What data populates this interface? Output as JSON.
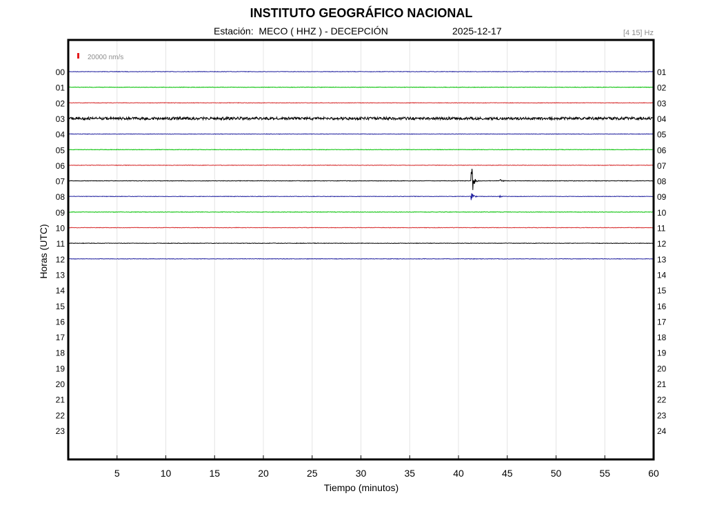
{
  "header": {
    "title": "INSTITUTO GEOGRÁFICO NACIONAL",
    "station": "Estación:  MECO ( HHZ ) - DECEPCIÓN",
    "date": "2025-12-17",
    "filter": "[4 15] Hz"
  },
  "chart_data": {
    "type": "line",
    "xlabel": "Tiempo (minutos)",
    "ylabel": "Horas (UTC)",
    "xlim": [
      0,
      60
    ],
    "x_ticks": [
      5,
      10,
      15,
      20,
      25,
      30,
      35,
      40,
      45,
      50,
      55,
      60
    ],
    "left_hour_labels": [
      "00",
      "01",
      "02",
      "03",
      "04",
      "05",
      "06",
      "07",
      "08",
      "09",
      "10",
      "11",
      "12",
      "13",
      "14",
      "15",
      "16",
      "17",
      "18",
      "19",
      "20",
      "21",
      "22",
      "23"
    ],
    "right_hour_labels": [
      "01",
      "02",
      "03",
      "04",
      "05",
      "06",
      "07",
      "08",
      "09",
      "10",
      "11",
      "12",
      "13",
      "14",
      "15",
      "16",
      "17",
      "18",
      "19",
      "20",
      "21",
      "22",
      "23",
      "24"
    ],
    "scale_label": "20000 nm/s",
    "scale_color": "#e41a1c",
    "grid": "vertical",
    "trace_color_cycle": [
      "#1f1f9e",
      "#00c000",
      "#d62728",
      "#000000"
    ],
    "series": [
      {
        "hour": 0,
        "color": "#1f1f9e",
        "events": [
          {
            "minute": 10.3,
            "amplitude": 0.3
          },
          {
            "minute": 29.2,
            "amplitude": 0.3
          }
        ]
      },
      {
        "hour": 1,
        "color": "#00c000",
        "events": [
          {
            "minute": 15.4,
            "amplitude": 0.2
          }
        ]
      },
      {
        "hour": 2,
        "color": "#d62728",
        "events": [
          {
            "minute": 42.8,
            "amplitude": 0.5
          },
          {
            "minute": 43.4,
            "amplitude": 0.5
          }
        ]
      },
      {
        "hour": 3,
        "color": "#000000",
        "events": [
          {
            "minute": 8.3,
            "amplitude": 0.5
          }
        ],
        "noisy": true
      },
      {
        "hour": 4,
        "color": "#1f1f9e",
        "events": []
      },
      {
        "hour": 5,
        "color": "#00c000",
        "events": [
          {
            "minute": 37.7,
            "amplitude": 0.2
          }
        ]
      },
      {
        "hour": 6,
        "color": "#d62728",
        "events": []
      },
      {
        "hour": 7,
        "color": "#000000",
        "events": [
          {
            "minute": 6.3,
            "amplitude": 0.4
          },
          {
            "minute": 25.5,
            "amplitude": 0.3
          },
          {
            "minute": 41.3,
            "amplitude": 32
          },
          {
            "minute": 44.2,
            "amplitude": 3
          },
          {
            "minute": 48.3,
            "amplitude": 0.4
          }
        ]
      },
      {
        "hour": 8,
        "color": "#1f1f9e",
        "events": [
          {
            "minute": 2.3,
            "amplitude": 0.5
          },
          {
            "minute": 11.5,
            "amplitude": 0.4
          },
          {
            "minute": 41.3,
            "amplitude": 10
          },
          {
            "minute": 44.2,
            "amplitude": 1.5
          },
          {
            "minute": 55.3,
            "amplitude": 0.4
          },
          {
            "minute": 57.5,
            "amplitude": 0.4
          }
        ]
      },
      {
        "hour": 9,
        "color": "#00c000",
        "events": []
      },
      {
        "hour": 10,
        "color": "#d62728",
        "events": [
          {
            "minute": 11.3,
            "amplitude": 0.4
          },
          {
            "minute": 23.2,
            "amplitude": 0.3
          },
          {
            "minute": 33.0,
            "amplitude": 0.3
          }
        ]
      },
      {
        "hour": 11,
        "color": "#000000",
        "events": [
          {
            "minute": 17.0,
            "amplitude": 0.3
          }
        ]
      },
      {
        "hour": 12,
        "color": "#1f1f9e",
        "events": []
      }
    ]
  }
}
